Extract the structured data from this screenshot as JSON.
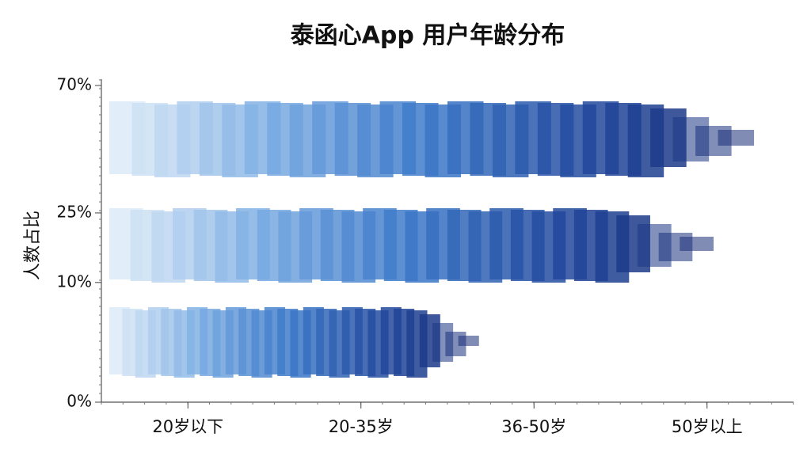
{
  "chart_data": {
    "type": "bar",
    "title": "泰函心App 用户年龄分布",
    "y_label": "人数占比",
    "categories": [
      "20岁以下",
      "20-35岁",
      "36-50岁",
      "50岁以上"
    ],
    "ylim": [
      0,
      70
    ],
    "yscale": "sqrt",
    "yticks": [
      {
        "value": 0,
        "label": "0%"
      },
      {
        "value": 10,
        "label": "10%"
      },
      {
        "value": 25,
        "label": "25%"
      },
      {
        "value": 70,
        "label": "70%"
      }
    ]
  }
}
